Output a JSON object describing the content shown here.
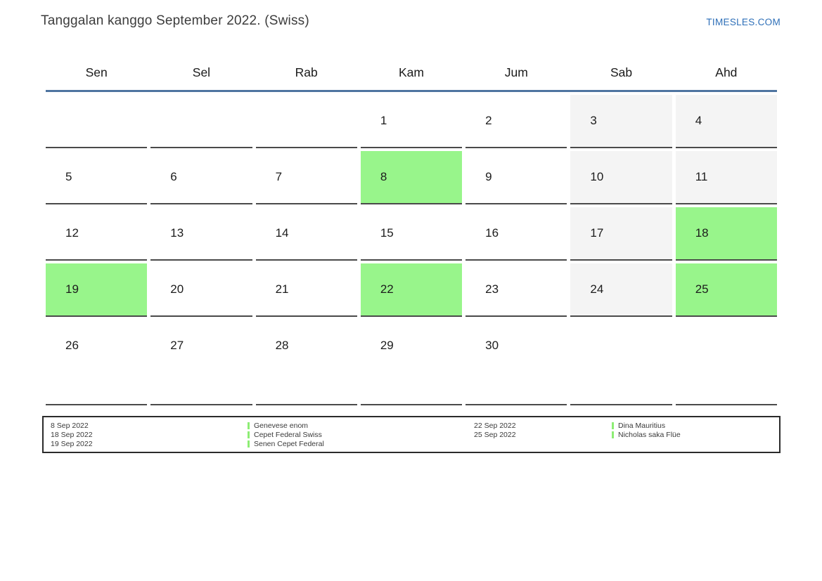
{
  "header": {
    "title": "Tanggalan kanggo September 2022. (Swiss)",
    "site_link": "TIMESLES.COM"
  },
  "calendar": {
    "weekdays": [
      "Sen",
      "Sel",
      "Rab",
      "Kam",
      "Jum",
      "Sab",
      "Ahd"
    ],
    "weeks": [
      [
        {
          "day": "",
          "type": "empty"
        },
        {
          "day": "",
          "type": "empty"
        },
        {
          "day": "",
          "type": "empty"
        },
        {
          "day": "1",
          "type": "normal"
        },
        {
          "day": "2",
          "type": "normal"
        },
        {
          "day": "3",
          "type": "weekend"
        },
        {
          "day": "4",
          "type": "weekend"
        }
      ],
      [
        {
          "day": "5",
          "type": "normal"
        },
        {
          "day": "6",
          "type": "normal"
        },
        {
          "day": "7",
          "type": "normal"
        },
        {
          "day": "8",
          "type": "holiday"
        },
        {
          "day": "9",
          "type": "normal"
        },
        {
          "day": "10",
          "type": "weekend"
        },
        {
          "day": "11",
          "type": "weekend"
        }
      ],
      [
        {
          "day": "12",
          "type": "normal"
        },
        {
          "day": "13",
          "type": "normal"
        },
        {
          "day": "14",
          "type": "normal"
        },
        {
          "day": "15",
          "type": "normal"
        },
        {
          "day": "16",
          "type": "normal"
        },
        {
          "day": "17",
          "type": "weekend"
        },
        {
          "day": "18",
          "type": "holiday"
        }
      ],
      [
        {
          "day": "19",
          "type": "holiday"
        },
        {
          "day": "20",
          "type": "normal"
        },
        {
          "day": "21",
          "type": "normal"
        },
        {
          "day": "22",
          "type": "holiday"
        },
        {
          "day": "23",
          "type": "normal"
        },
        {
          "day": "24",
          "type": "weekend"
        },
        {
          "day": "25",
          "type": "holiday"
        }
      ],
      [
        {
          "day": "26",
          "type": "normal"
        },
        {
          "day": "27",
          "type": "normal"
        },
        {
          "day": "28",
          "type": "normal"
        },
        {
          "day": "29",
          "type": "normal"
        },
        {
          "day": "30",
          "type": "normal"
        },
        {
          "day": "",
          "type": "empty"
        },
        {
          "day": "",
          "type": "empty"
        }
      ]
    ]
  },
  "legend": {
    "groups": [
      {
        "dates": [
          "8 Sep 2022",
          "18 Sep 2022",
          "19 Sep 2022"
        ],
        "events": [
          "Genevese enom",
          "Cepet Federal Swiss",
          "Senen Cepet Federal"
        ]
      },
      {
        "dates": [
          "22 Sep 2022",
          "25 Sep 2022"
        ],
        "events": [
          "Dina Mauritius",
          "Nicholas saka Flüe"
        ]
      }
    ]
  },
  "colors": {
    "holiday_green": "#98f58b",
    "weekend_gray": "#f4f4f4",
    "header_line_blue": "#4e74a0",
    "legend_marker_green": "#8ded74",
    "link_blue": "#2e6fb8"
  }
}
